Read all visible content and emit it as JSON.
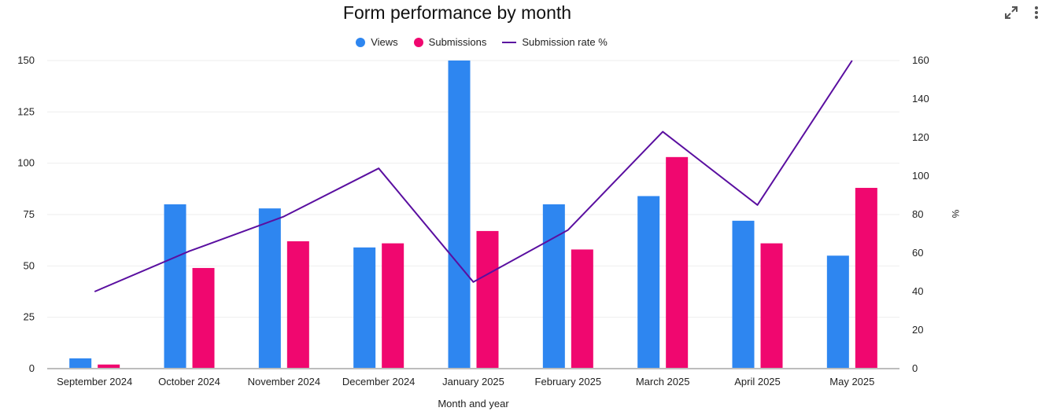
{
  "title": "Form performance by month",
  "toolbar": {
    "expand_icon": "expand-icon",
    "menu_icon": "more-vertical-icon"
  },
  "colors": {
    "views": "#2e86f0",
    "submissions": "#f0076f",
    "rate": "#5a0fa0",
    "grid": "#eeeeee",
    "axis": "#bdbdbd"
  },
  "chart_data": {
    "type": "bar",
    "title": "Form performance by month",
    "xlabel": "Month and year",
    "ylabel": "",
    "y2label": "%",
    "categories": [
      "September 2024",
      "October 2024",
      "November 2024",
      "December 2024",
      "January 2025",
      "February 2025",
      "March 2025",
      "April 2025",
      "May 2025"
    ],
    "ylim": [
      0,
      150
    ],
    "y2lim": [
      0,
      160
    ],
    "yticks": [
      "0",
      "25",
      "50",
      "75",
      "100",
      "125",
      "150"
    ],
    "y2ticks": [
      "0",
      "20",
      "40",
      "60",
      "80",
      "100",
      "120",
      "140",
      "160"
    ],
    "series": [
      {
        "name": "Views",
        "kind": "bar",
        "axis": "left",
        "values": [
          5,
          80,
          78,
          59,
          150,
          80,
          84,
          72,
          55
        ]
      },
      {
        "name": "Submissions",
        "kind": "bar",
        "axis": "left",
        "values": [
          2,
          49,
          62,
          61,
          67,
          58,
          103,
          61,
          88
        ]
      },
      {
        "name": "Submission rate %",
        "kind": "line",
        "axis": "right",
        "values": [
          40,
          61,
          79,
          104,
          45,
          72,
          123,
          85,
          160
        ]
      }
    ],
    "grid": true,
    "legend_position": "top"
  }
}
